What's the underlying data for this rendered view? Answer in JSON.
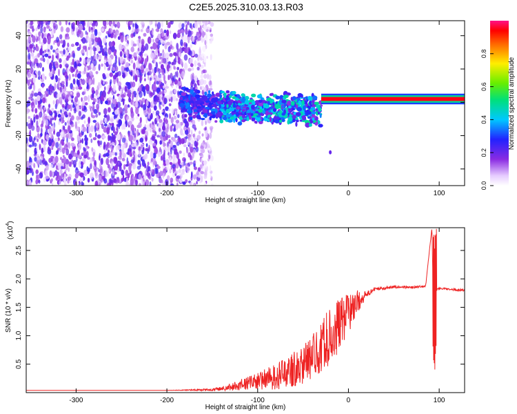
{
  "title": "C2E5.2025.310.03.13.R03",
  "colors": {
    "frame": "#000000",
    "snr_line": "#ee2222",
    "background": "#ffffff"
  },
  "chart_data": [
    {
      "type": "heatmap",
      "name": "spectrogram",
      "xlabel": "Height of straight line (km)",
      "ylabel": "Frequency (Hz)",
      "xlim": [
        -355,
        128
      ],
      "ylim": [
        -50,
        49
      ],
      "xticks": [
        -300,
        -200,
        -100,
        0,
        100
      ],
      "yticks": [
        -40,
        -20,
        0,
        20,
        40
      ],
      "colorbar": {
        "label": "Normalized spectral amplitude",
        "range": [
          0,
          1
        ],
        "ticks": [
          0.0,
          0.2,
          0.4,
          0.6,
          0.8
        ],
        "tick_labels": [
          "0.0",
          "0.2",
          "0.4",
          "0.6",
          "0.8"
        ]
      },
      "features": [
        {
          "region": "noise",
          "x_range": [
            -355,
            -150
          ],
          "freq_range": [
            -50,
            49
          ],
          "amplitude": 0.1
        },
        {
          "region": "transition",
          "x_range": [
            -185,
            -30
          ],
          "freq_center": 0,
          "freq_spread": 10,
          "amplitude": 0.3
        },
        {
          "region": "stable_carrier",
          "x_range": [
            -30,
            128
          ],
          "freq": 2,
          "amplitude": 0.95
        },
        {
          "region": "outlier",
          "x": -20,
          "freq": -30,
          "amplitude": 0.1
        }
      ]
    },
    {
      "type": "line",
      "name": "snr",
      "xlabel": "Height of straight line (km)",
      "ylabel": "SNR (10 * v/v)",
      "exponent_label": "(x10",
      "exponent_power": "4",
      "xlim": [
        -355,
        128
      ],
      "ylim": [
        0,
        2.9
      ],
      "xticks": [
        -300,
        -200,
        -100,
        0,
        100
      ],
      "yticks": [
        0.5,
        1.0,
        1.5,
        2.0,
        2.5
      ],
      "ytick_labels": [
        "0.5",
        "1.0",
        "1.5",
        "2.0",
        "2.5"
      ],
      "series": [
        {
          "name": "SNR",
          "x": [
            -355,
            -200,
            -150,
            -135,
            -100,
            -75,
            -50,
            -35,
            -25,
            -15,
            -10,
            -5,
            0,
            5,
            10,
            15,
            20,
            25,
            30,
            50,
            70,
            85,
            92,
            95,
            97,
            100,
            110,
            128
          ],
          "y": [
            0.04,
            0.04,
            0.05,
            0.08,
            0.2,
            0.3,
            0.5,
            0.7,
            0.9,
            1.1,
            1.2,
            1.3,
            1.4,
            1.5,
            1.6,
            1.65,
            1.72,
            1.78,
            1.82,
            1.86,
            1.85,
            1.87,
            2.9,
            0.3,
            1.8,
            1.83,
            1.82,
            1.8
          ],
          "noise_amplitude": [
            0,
            0,
            0.02,
            0.05,
            0.15,
            0.25,
            0.35,
            0.4,
            0.5,
            0.5,
            0.45,
            0.4,
            0.35,
            0.3,
            0.2,
            0.12,
            0.06,
            0.04,
            0.03,
            0.02,
            0.02,
            0.02,
            0,
            0,
            0.02,
            0.02,
            0.02,
            0.02
          ]
        }
      ]
    }
  ]
}
